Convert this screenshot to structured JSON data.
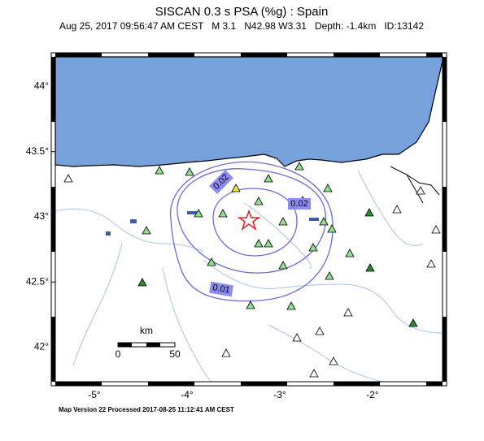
{
  "title": "SISCAN 0.3 s PSA (%g) : Spain",
  "subtitle": "Aug 25, 2017 09:56:47 AM CEST   M 3.1   N42.98 W3.31   Depth: -1.4km   ID:13142",
  "map": {
    "lat_labels": [
      {
        "value": 44,
        "label": "44°"
      },
      {
        "value": 43.5,
        "label": "43.5°"
      },
      {
        "value": 43,
        "label": "43°"
      },
      {
        "value": 42.5,
        "label": "42.5°"
      },
      {
        "value": 42,
        "label": "42°"
      }
    ],
    "lon_labels": [
      {
        "value": -5,
        "label": "-5°"
      },
      {
        "value": -4,
        "label": "-4°"
      },
      {
        "value": -3,
        "label": "-3°"
      },
      {
        "value": -2,
        "label": "-2°"
      }
    ],
    "contour_labels": [
      "0.02",
      "0.02",
      "0.01"
    ],
    "scale": {
      "unit": "km",
      "labels": [
        "0",
        "50"
      ]
    }
  },
  "footer": "Map Version 22 Processed 2017-08-25 11:12:41 AM CEST"
}
